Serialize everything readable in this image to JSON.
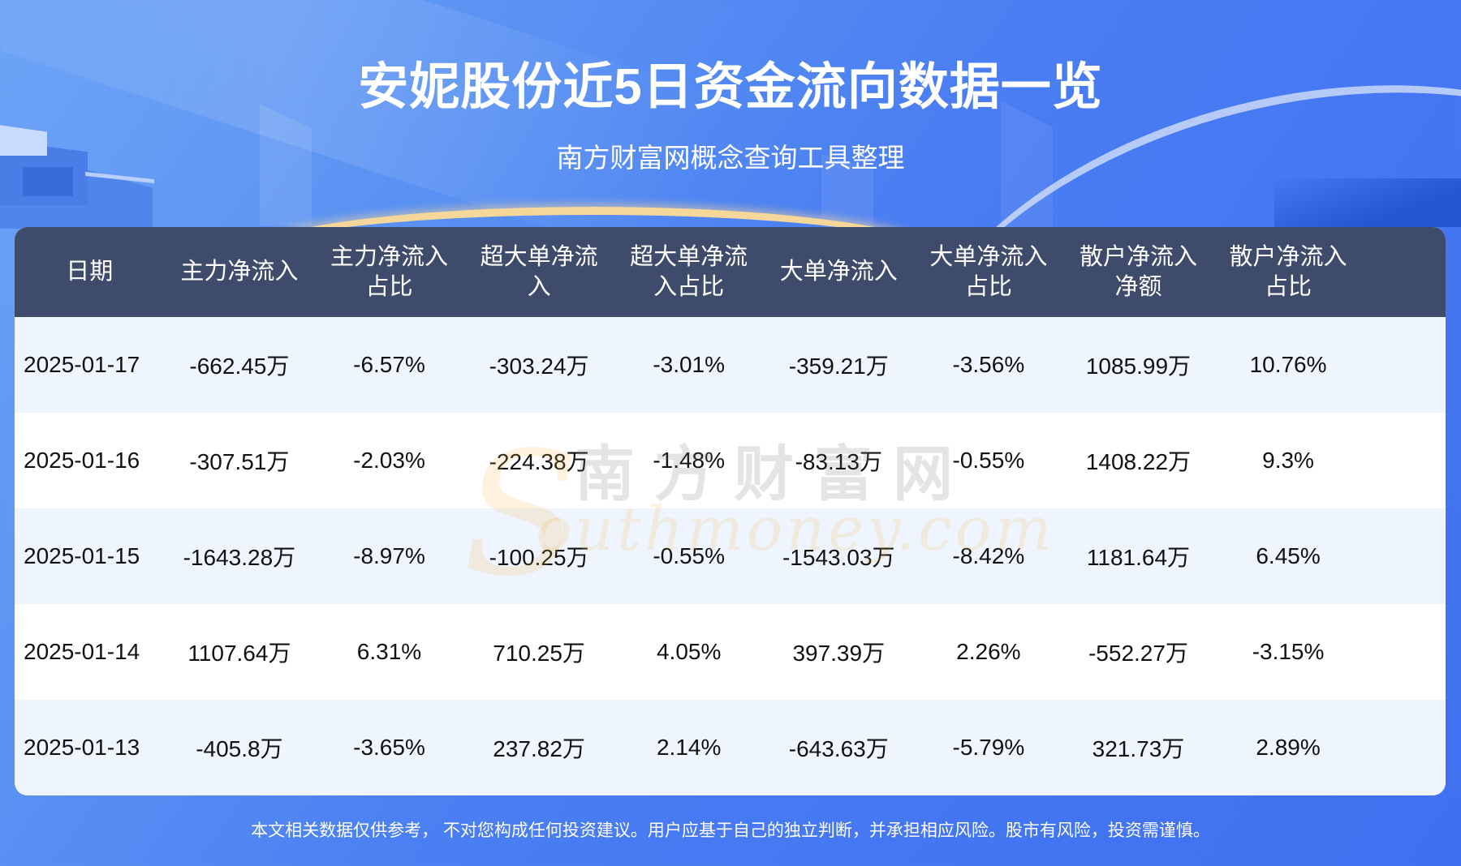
{
  "header": {
    "title": "安妮股份近5日资金流向数据一览",
    "subtitle": "南方财富网概念查询工具整理"
  },
  "table": {
    "columns": [
      "日期",
      "主力净流入",
      "主力净流入占比",
      "超大单净流入",
      "超大单净流入占比",
      "大单净流入",
      "大单净流入占比",
      "散户净流入净额",
      "散户净流入占比"
    ],
    "column_lines": [
      [
        "日期"
      ],
      [
        "主力净流入"
      ],
      [
        "主力净流入",
        "占比"
      ],
      [
        "超大单净流",
        "入"
      ],
      [
        "超大单净流",
        "入占比"
      ],
      [
        "大单净流入"
      ],
      [
        "大单净流入",
        "占比"
      ],
      [
        "散户净流入",
        "净额"
      ],
      [
        "散户净流入",
        "占比"
      ]
    ],
    "rows": [
      [
        "2025-01-17",
        "-662.45万",
        "-6.57%",
        "-303.24万",
        "-3.01%",
        "-359.21万",
        "-3.56%",
        "1085.99万",
        "10.76%"
      ],
      [
        "2025-01-16",
        "-307.51万",
        "-2.03%",
        "-224.38万",
        "-1.48%",
        "-83.13万",
        "-0.55%",
        "1408.22万",
        "9.3%"
      ],
      [
        "2025-01-15",
        "-1643.28万",
        "-8.97%",
        "-100.25万",
        "-0.55%",
        "-1543.03万",
        "-8.42%",
        "1181.64万",
        "6.45%"
      ],
      [
        "2025-01-14",
        "1107.64万",
        "6.31%",
        "710.25万",
        "4.05%",
        "397.39万",
        "2.26%",
        "-552.27万",
        "-3.15%"
      ],
      [
        "2025-01-13",
        "-405.8万",
        "-3.65%",
        "237.82万",
        "2.14%",
        "-643.63万",
        "-5.79%",
        "321.73万",
        "2.89%"
      ]
    ]
  },
  "watermark": {
    "cn": "南方财富网",
    "en": "outhmoney.com",
    "s": "S"
  },
  "footer": {
    "disclaimer": "本文相关数据仅供参考， 不对您构成任何投资建议。用户应基于自己的独立判断，并承担相应风险。股市有风险，投资需谨慎。"
  },
  "colors": {
    "background": "#4476f2",
    "table_header": "#3e4b6b",
    "row_odd": "#eef5fe",
    "row_even": "#ffffff",
    "text": "#111111"
  }
}
